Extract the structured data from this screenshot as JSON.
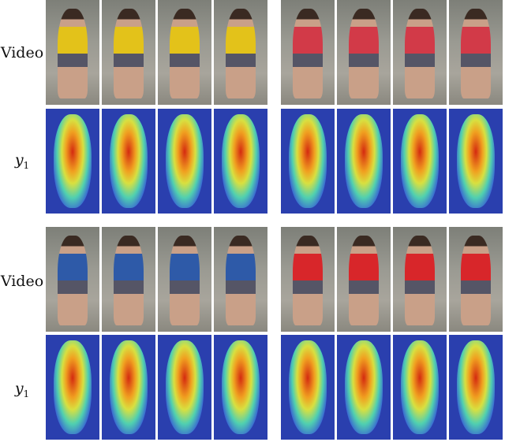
{
  "row_labels": [
    {
      "text": "Video"
    },
    {
      "var": "y",
      "sub": "1"
    },
    {
      "text": "Video"
    },
    {
      "var": "y",
      "sub": "1"
    }
  ],
  "groups": [
    {
      "row": "top",
      "left_person_color": "#e3c21a",
      "right_person_color": "#d23a48"
    },
    {
      "row": "bottom",
      "left_person_color": "#2e5aa8",
      "right_person_color": "#d8262a"
    }
  ],
  "frames_per_sequence": 4
}
